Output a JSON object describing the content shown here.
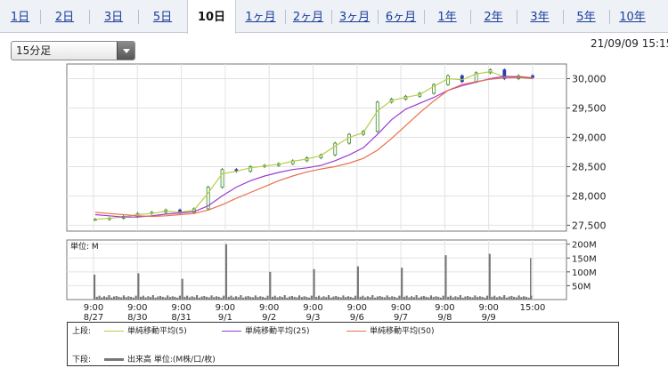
{
  "tabs": [
    {
      "label": "1日"
    },
    {
      "label": "2日"
    },
    {
      "label": "3日"
    },
    {
      "label": "5日"
    },
    {
      "label": "10日",
      "active": true
    },
    {
      "label": "1ヶ月"
    },
    {
      "label": "2ヶ月"
    },
    {
      "label": "3ヶ月"
    },
    {
      "label": "6ヶ月"
    },
    {
      "label": "1年"
    },
    {
      "label": "2年"
    },
    {
      "label": "3年"
    },
    {
      "label": "5年"
    },
    {
      "label": "10年"
    }
  ],
  "interval_select": {
    "value": "15分足"
  },
  "timestamp": "21/09/09 15:15",
  "chart_data": {
    "type": "line",
    "price": {
      "yticks": [
        27500,
        28000,
        28500,
        29000,
        29500,
        30000
      ],
      "ytick_labels": [
        "27,500",
        "28,000",
        "28,500",
        "29,000",
        "29,500",
        "30,000"
      ],
      "ylim": [
        27400,
        30250
      ],
      "close": [
        27600,
        27620,
        27650,
        27700,
        27720,
        27760,
        27720,
        27780,
        28150,
        28450,
        28420,
        28500,
        28520,
        28550,
        28600,
        28650,
        28700,
        28900,
        29050,
        29100,
        29600,
        29650,
        29700,
        29750,
        29900,
        30050,
        29950,
        30100,
        30150,
        30000,
        30050,
        30020
      ],
      "series": [
        {
          "name": "単純移動平均(5)",
          "color": "#b8cc4a",
          "values": [
            27600,
            27620,
            27640,
            27680,
            27700,
            27740,
            27720,
            27760,
            28050,
            28380,
            28420,
            28480,
            28510,
            28540,
            28590,
            28630,
            28690,
            28850,
            29000,
            29080,
            29450,
            29630,
            29680,
            29730,
            29870,
            30000,
            29980,
            30080,
            30120,
            30030,
            30040,
            30020
          ]
        },
        {
          "name": "単純移動平均(25)",
          "color": "#9b3ccf",
          "values": [
            27680,
            27660,
            27640,
            27640,
            27660,
            27690,
            27710,
            27730,
            27830,
            28000,
            28150,
            28260,
            28340,
            28400,
            28450,
            28480,
            28520,
            28600,
            28700,
            28820,
            29050,
            29300,
            29480,
            29580,
            29680,
            29800,
            29880,
            29940,
            30000,
            30040,
            30030,
            30010
          ]
        },
        {
          "name": "単純移動平均(50)",
          "color": "#e8704a",
          "values": [
            27720,
            27700,
            27680,
            27660,
            27650,
            27660,
            27680,
            27700,
            27760,
            27850,
            27960,
            28060,
            28160,
            28260,
            28340,
            28410,
            28460,
            28500,
            28560,
            28640,
            28780,
            28980,
            29200,
            29420,
            29620,
            29800,
            29900,
            29950,
            29990,
            30010,
            30020,
            30000
          ]
        }
      ]
    },
    "volume": {
      "unit_label": "単位: M",
      "yticks": [
        50,
        100,
        150,
        200
      ],
      "ytick_labels": [
        "50M",
        "100M",
        "150M",
        "200M"
      ],
      "ylim": [
        0,
        215
      ],
      "day_spikes": [
        90,
        95,
        75,
        200,
        100,
        110,
        120,
        115,
        160,
        165,
        150
      ]
    },
    "x_tick_labels": [
      {
        "time": "9:00",
        "date": "8/27"
      },
      {
        "time": "9:00",
        "date": "8/30"
      },
      {
        "time": "9:00",
        "date": "8/31"
      },
      {
        "time": "9:00",
        "date": "9/1"
      },
      {
        "time": "9:00",
        "date": "9/2"
      },
      {
        "time": "9:00",
        "date": "9/3"
      },
      {
        "time": "9:00",
        "date": "9/6"
      },
      {
        "time": "9:00",
        "date": "9/7"
      },
      {
        "time": "9:00",
        "date": "9/8"
      },
      {
        "time": "9:00",
        "date": "9/9"
      },
      {
        "time": "15:00",
        "date": ""
      }
    ]
  },
  "legend": {
    "upper_label": "上段:",
    "lower_label": "下段:",
    "ma5": "単純移動平均(5)",
    "ma25": "単純移動平均(25)",
    "ma50": "単純移動平均(50)",
    "volume": "出来高 単位:(M株/口/枚)"
  }
}
